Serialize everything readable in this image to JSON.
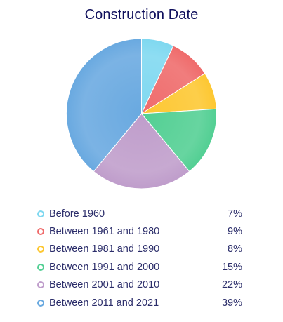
{
  "chart_data": {
    "type": "pie",
    "title": "Construction Date",
    "categories": [
      "Before 1960",
      "Between 1961 and 1980",
      "Between 1981 and 1990",
      "Between 1991 and 2000",
      "Between 2001 and 2010",
      "Between 2011 and 2021"
    ],
    "values": [
      7,
      9,
      8,
      15,
      22,
      39
    ],
    "value_labels": [
      "7%",
      "9%",
      "8%",
      "15%",
      "22%",
      "39%"
    ],
    "colors": [
      "#7fd8f0",
      "#ef6b6b",
      "#fdc731",
      "#52cf93",
      "#bf9dcb",
      "#69a9e0"
    ],
    "legend_placement": "bottom"
  }
}
